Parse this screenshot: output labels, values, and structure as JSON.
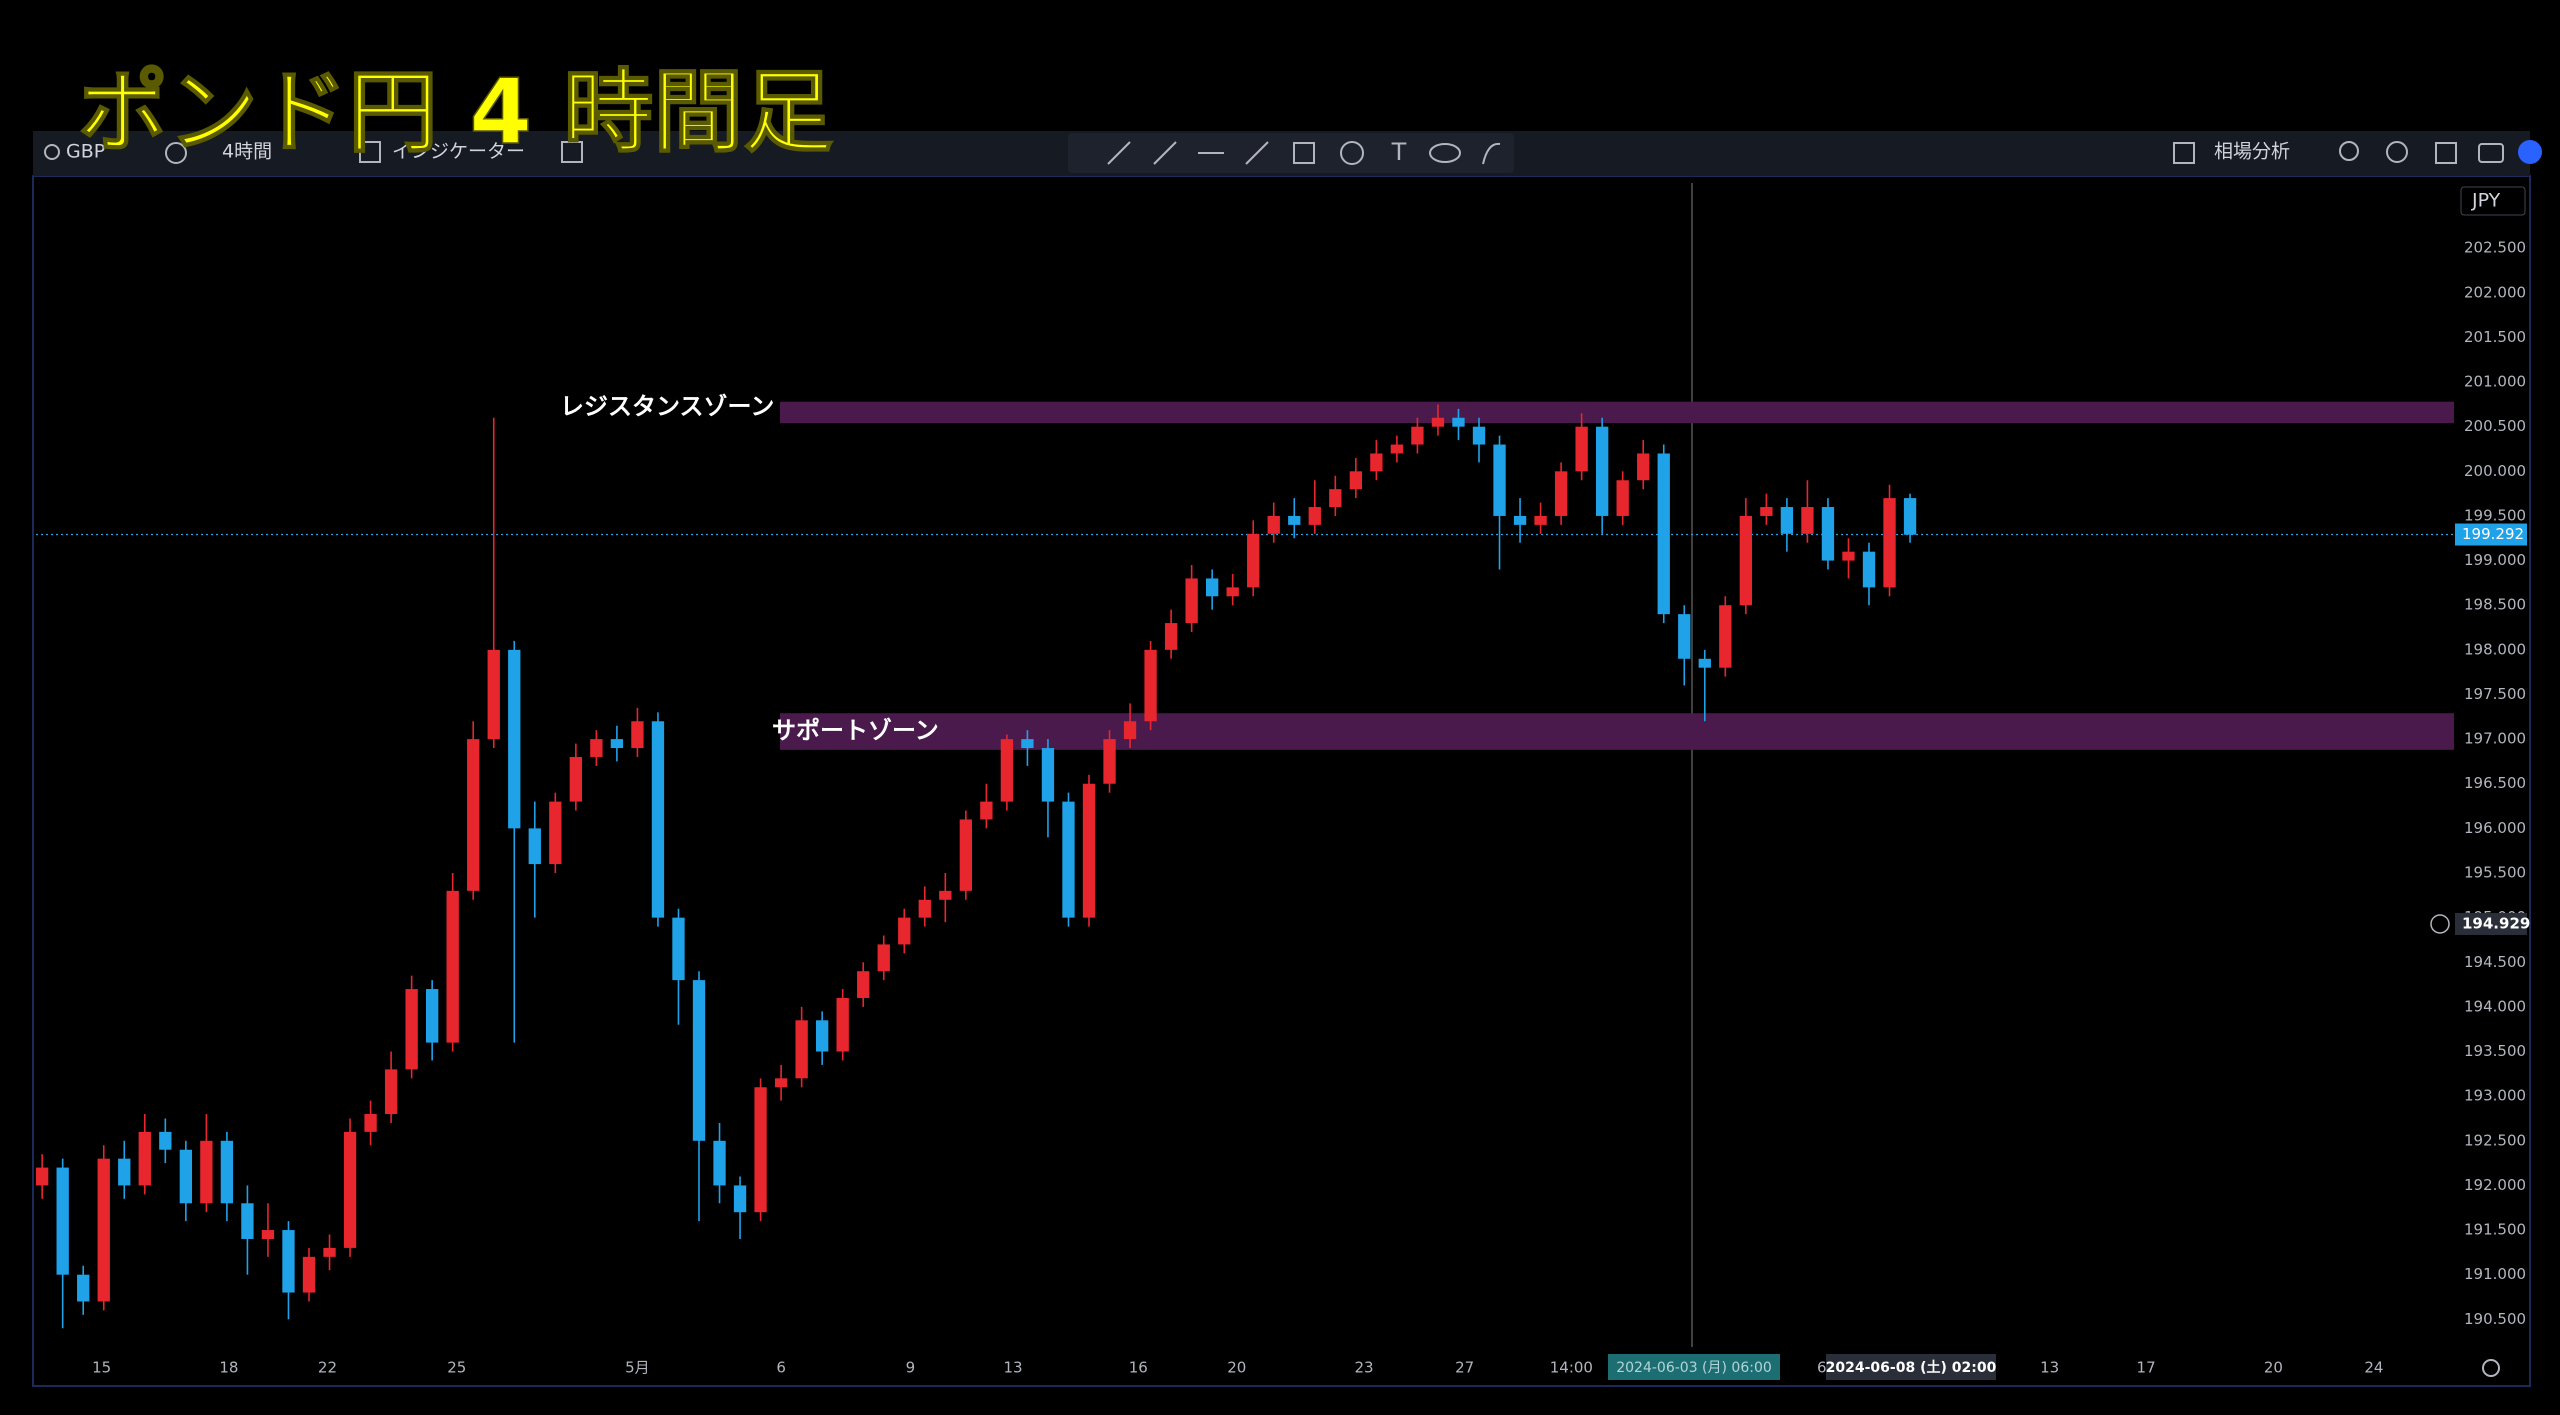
{
  "toolbar": {
    "symbol": "GBP",
    "interval": "4時間",
    "indicators": "インジケーター",
    "analysis": "相場分析",
    "currency": "JPY"
  },
  "chart_data": {
    "type": "candlestick",
    "title": "ポンド円 4 時間足",
    "up_color": "#e8262e",
    "down_color": "#1fa2e8",
    "open": [
      192.0,
      192.2,
      191.0,
      190.7,
      192.3,
      192.0,
      192.6,
      192.4,
      191.8,
      192.5,
      191.8,
      191.4,
      191.5,
      190.8,
      191.2,
      191.3,
      192.6,
      192.8,
      193.3,
      194.2,
      193.6,
      195.3,
      197.0,
      198.0,
      196.0,
      195.6,
      196.3,
      196.8,
      197.0,
      196.9,
      197.2,
      195.0,
      194.3,
      192.5,
      192.0,
      191.7,
      193.1,
      193.2,
      193.85,
      193.5,
      194.1,
      194.4,
      194.7,
      195.0,
      195.2,
      195.3,
      196.1,
      196.3,
      197.0,
      196.9,
      196.3,
      195.0,
      196.5,
      197.0,
      197.2,
      198.0,
      198.3,
      198.8,
      198.6,
      198.7,
      199.3,
      199.5,
      199.4,
      199.6,
      199.8,
      200.0,
      200.2,
      200.3,
      200.5,
      200.6,
      200.5,
      200.3,
      199.5,
      199.4,
      199.5,
      200.0,
      200.5,
      199.5,
      199.9,
      200.2,
      198.4,
      197.9,
      197.8,
      198.5,
      199.5,
      199.6,
      199.3,
      199.6,
      199.0,
      199.1,
      198.7,
      199.7
    ],
    "high": [
      192.35,
      192.3,
      191.1,
      192.45,
      192.5,
      192.8,
      192.75,
      192.5,
      192.8,
      192.6,
      192.0,
      191.8,
      191.6,
      191.3,
      191.45,
      192.75,
      192.95,
      193.5,
      194.35,
      194.3,
      195.5,
      197.2,
      200.6,
      198.1,
      196.3,
      196.4,
      196.95,
      197.1,
      197.15,
      197.35,
      197.3,
      195.1,
      194.4,
      192.7,
      192.1,
      193.2,
      193.35,
      194.0,
      193.95,
      194.2,
      194.5,
      194.8,
      195.1,
      195.35,
      195.5,
      196.2,
      196.5,
      197.05,
      197.1,
      197.0,
      196.4,
      196.6,
      197.1,
      197.4,
      198.1,
      198.45,
      198.95,
      198.9,
      198.85,
      199.45,
      199.65,
      199.7,
      199.9,
      199.95,
      200.15,
      200.35,
      200.4,
      200.6,
      200.75,
      200.7,
      200.6,
      200.4,
      199.7,
      199.65,
      200.1,
      200.65,
      200.6,
      200.0,
      200.35,
      200.3,
      198.5,
      198.0,
      198.6,
      199.7,
      199.75,
      199.7,
      199.9,
      199.7,
      199.25,
      199.2,
      199.85,
      199.75
    ],
    "low": [
      191.85,
      190.4,
      190.55,
      190.6,
      191.85,
      191.9,
      192.25,
      191.6,
      191.7,
      191.6,
      191.0,
      191.2,
      190.5,
      190.7,
      191.05,
      191.2,
      192.45,
      192.7,
      193.2,
      193.4,
      193.5,
      195.2,
      196.9,
      193.6,
      195.0,
      195.5,
      196.2,
      196.7,
      196.75,
      196.8,
      194.9,
      193.8,
      191.6,
      191.8,
      191.4,
      191.6,
      192.95,
      193.1,
      193.35,
      193.4,
      194.0,
      194.3,
      194.6,
      194.9,
      194.95,
      195.2,
      196.0,
      196.2,
      196.7,
      195.9,
      194.9,
      194.9,
      196.4,
      196.9,
      197.1,
      197.9,
      198.2,
      198.45,
      198.5,
      198.6,
      199.2,
      199.25,
      199.3,
      199.5,
      199.7,
      199.9,
      200.1,
      200.2,
      200.4,
      200.35,
      200.1,
      198.9,
      199.2,
      199.3,
      199.4,
      199.9,
      199.3,
      199.4,
      199.8,
      198.3,
      197.6,
      197.2,
      197.7,
      198.4,
      199.4,
      199.1,
      199.2,
      198.9,
      198.8,
      198.5,
      198.6,
      199.2
    ],
    "close": [
      192.2,
      191.0,
      190.7,
      192.3,
      192.0,
      192.6,
      192.4,
      191.8,
      192.5,
      191.8,
      191.4,
      191.5,
      190.8,
      191.2,
      191.3,
      192.6,
      192.8,
      193.3,
      194.2,
      193.6,
      195.3,
      197.0,
      198.0,
      196.0,
      195.6,
      196.3,
      196.8,
      197.0,
      196.9,
      197.2,
      195.0,
      194.3,
      192.5,
      192.0,
      191.7,
      193.1,
      193.2,
      193.85,
      193.5,
      194.1,
      194.4,
      194.7,
      195.0,
      195.2,
      195.3,
      196.1,
      196.3,
      197.0,
      196.9,
      196.3,
      195.0,
      196.5,
      197.0,
      197.2,
      198.0,
      198.3,
      198.8,
      198.6,
      198.7,
      199.3,
      199.5,
      199.4,
      199.6,
      199.8,
      200.0,
      200.2,
      200.3,
      200.5,
      200.6,
      200.5,
      200.3,
      199.5,
      199.4,
      199.5,
      200.0,
      200.5,
      199.5,
      199.9,
      200.2,
      198.4,
      197.9,
      197.8,
      198.5,
      199.5,
      199.6,
      199.3,
      199.6,
      199.0,
      199.1,
      198.7,
      199.7,
      199.29
    ],
    "ylim": [
      190.19,
      203.23
    ],
    "yticks": [
      {
        "value": 190.5,
        "label": "190.500"
      },
      {
        "value": 191,
        "label": "191.000"
      },
      {
        "value": 191.5,
        "label": "191.500"
      },
      {
        "value": 192,
        "label": "192.000"
      },
      {
        "value": 192.5,
        "label": "192.500"
      },
      {
        "value": 193,
        "label": "193.000"
      },
      {
        "value": 193.5,
        "label": "193.500"
      },
      {
        "value": 194,
        "label": "194.000"
      },
      {
        "value": 194.5,
        "label": "194.500"
      },
      {
        "value": 195,
        "label": "195.000"
      },
      {
        "value": 195.5,
        "label": "195.500"
      },
      {
        "value": 196,
        "label": "196.000"
      },
      {
        "value": 196.5,
        "label": "196.500"
      },
      {
        "value": 197,
        "label": "197.000"
      },
      {
        "value": 197.5,
        "label": "197.500"
      },
      {
        "value": 198,
        "label": "198.000"
      },
      {
        "value": 198.5,
        "label": "198.500"
      },
      {
        "value": 199,
        "label": "199.000"
      },
      {
        "value": 199.5,
        "label": "199.500"
      },
      {
        "value": 200,
        "label": "200.000"
      },
      {
        "value": 200.5,
        "label": "200.500"
      },
      {
        "value": 201,
        "label": "201.000"
      },
      {
        "value": 201.5,
        "label": "201.500"
      },
      {
        "value": 202,
        "label": "202.000"
      },
      {
        "value": 202.5,
        "label": "202.500"
      }
    ],
    "xlim": [
      -0.3,
      117.5
    ],
    "xticks": [
      {
        "value": 2.9,
        "label": "15"
      },
      {
        "value": 9.1,
        "label": "18"
      },
      {
        "value": 13.9,
        "label": "22"
      },
      {
        "value": 20.2,
        "label": "25"
      },
      {
        "value": 29.0,
        "label": "5月"
      },
      {
        "value": 36.0,
        "label": "6"
      },
      {
        "value": 42.3,
        "label": "9"
      },
      {
        "value": 47.3,
        "label": "13"
      },
      {
        "value": 53.4,
        "label": "16"
      },
      {
        "value": 58.2,
        "label": "20"
      },
      {
        "value": 64.4,
        "label": "23"
      },
      {
        "value": 69.3,
        "label": "27"
      },
      {
        "value": 74.5,
        "label": "14:00"
      },
      {
        "value": 86.7,
        "label": "6"
      },
      {
        "value": 97.8,
        "label": "13"
      },
      {
        "value": 102.5,
        "label": "17"
      },
      {
        "value": 108.7,
        "label": "20"
      },
      {
        "value": 113.6,
        "label": "24"
      }
    ],
    "zones": [
      {
        "label": "レジスタンスゾーン",
        "from": 200.54,
        "to": 200.78,
        "color": "#4a1a4d"
      },
      {
        "label": "サポートゾーン",
        "from": 196.88,
        "to": 197.29,
        "color": "#4a1a4d"
      }
    ],
    "last_price": 199.292,
    "crosshair_price": 194.929,
    "crosshair_time": "2024-06-03 (月) 06:00",
    "cursor_time": "2024-06-08 (土) 02:00"
  }
}
